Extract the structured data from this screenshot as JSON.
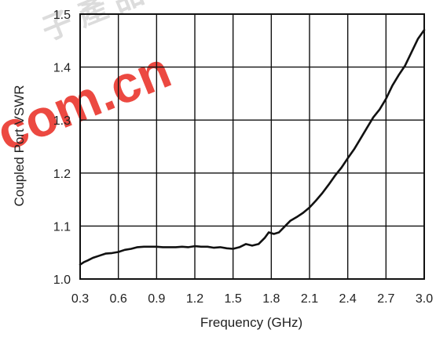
{
  "chart_data": {
    "type": "line",
    "title": "",
    "xlabel": "Frequency (GHz)",
    "ylabel": "Coupled Port VSWR",
    "xlim": [
      0.3,
      3.0
    ],
    "ylim": [
      1.0,
      1.5
    ],
    "grid": true,
    "legend": "none",
    "x_ticks": [
      "0.3",
      "0.6",
      "0.9",
      "1.2",
      "1.5",
      "1.8",
      "2.1",
      "2.4",
      "2.7",
      "3.0"
    ],
    "y_ticks": [
      "1.0",
      "1.1",
      "1.2",
      "1.3",
      "1.4",
      "1.5"
    ],
    "series": [
      {
        "color": "#111111",
        "x": [
          0.3,
          0.33,
          0.36,
          0.4,
          0.45,
          0.5,
          0.55,
          0.6,
          0.65,
          0.7,
          0.75,
          0.8,
          0.85,
          0.9,
          0.95,
          1.0,
          1.05,
          1.1,
          1.15,
          1.2,
          1.25,
          1.3,
          1.35,
          1.4,
          1.45,
          1.5,
          1.55,
          1.6,
          1.65,
          1.7,
          1.75,
          1.78,
          1.82,
          1.86,
          1.9,
          1.95,
          2.0,
          2.05,
          2.1,
          2.15,
          2.2,
          2.25,
          2.3,
          2.35,
          2.4,
          2.45,
          2.5,
          2.55,
          2.6,
          2.65,
          2.7,
          2.75,
          2.8,
          2.85,
          2.9,
          2.95,
          3.0
        ],
        "y": [
          1.027,
          1.032,
          1.035,
          1.04,
          1.044,
          1.048,
          1.049,
          1.051,
          1.055,
          1.057,
          1.06,
          1.061,
          1.061,
          1.061,
          1.06,
          1.06,
          1.06,
          1.061,
          1.06,
          1.062,
          1.061,
          1.061,
          1.059,
          1.06,
          1.058,
          1.057,
          1.06,
          1.066,
          1.063,
          1.066,
          1.078,
          1.088,
          1.085,
          1.088,
          1.098,
          1.11,
          1.117,
          1.125,
          1.135,
          1.148,
          1.162,
          1.178,
          1.195,
          1.21,
          1.228,
          1.245,
          1.265,
          1.285,
          1.305,
          1.32,
          1.34,
          1.365,
          1.385,
          1.403,
          1.428,
          1.453,
          1.47
        ]
      }
    ]
  },
  "watermark": {
    "chinese": "子 產 品 世 界",
    "domain": "com.cn",
    "color": "#e8241a"
  }
}
